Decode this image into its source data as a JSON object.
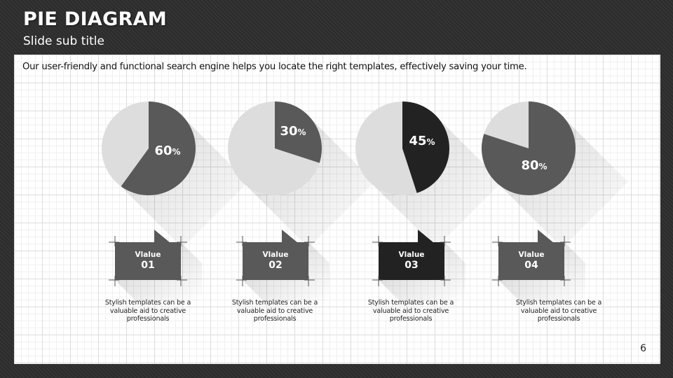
{
  "slide": {
    "title": "PIE DIAGRAM",
    "subtitle": "Slide sub title",
    "intro": "Our user-friendly and functional search engine helps you locate the right templates, effectively saving your time.",
    "page_number": "6"
  },
  "colors": {
    "light": "#dddddd",
    "mid": "#595959",
    "dark": "#222222",
    "background": "#2f2f2f"
  },
  "chart_data": {
    "type": "pie",
    "unit": "%",
    "pies": [
      {
        "value": 60,
        "label": "60",
        "fill": "#595959"
      },
      {
        "value": 30,
        "label": "30",
        "fill": "#595959"
      },
      {
        "value": 45,
        "label": "45",
        "fill": "#222222"
      },
      {
        "value": 80,
        "label": "80",
        "fill": "#595959"
      }
    ]
  },
  "items": [
    {
      "label": "Vlalue",
      "number": "01",
      "desc": "Stylish templates can be a valuable aid to creative professionals",
      "fill": "#595959"
    },
    {
      "label": "Vlalue",
      "number": "02",
      "desc": "Stylish templates can be a valuable aid to creative professionals",
      "fill": "#595959"
    },
    {
      "label": "Vlalue",
      "number": "03",
      "desc": "Stylish templates can be a valuable aid to creative professionals",
      "fill": "#222222"
    },
    {
      "label": "Vlalue",
      "number": "04",
      "desc": "Stylish templates can be a valuable aid to creative professionals",
      "fill": "#595959"
    }
  ]
}
